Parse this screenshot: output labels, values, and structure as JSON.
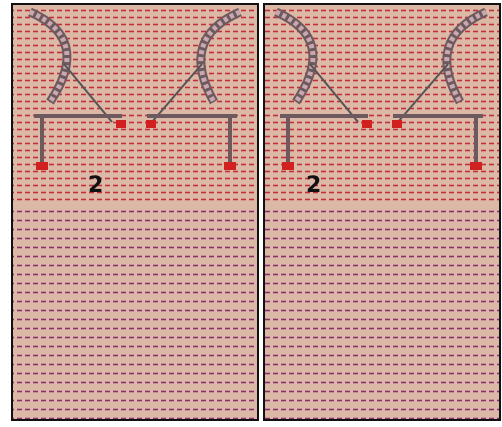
{
  "panels": [
    {
      "label": "2"
    },
    {
      "label": "2"
    }
  ]
}
